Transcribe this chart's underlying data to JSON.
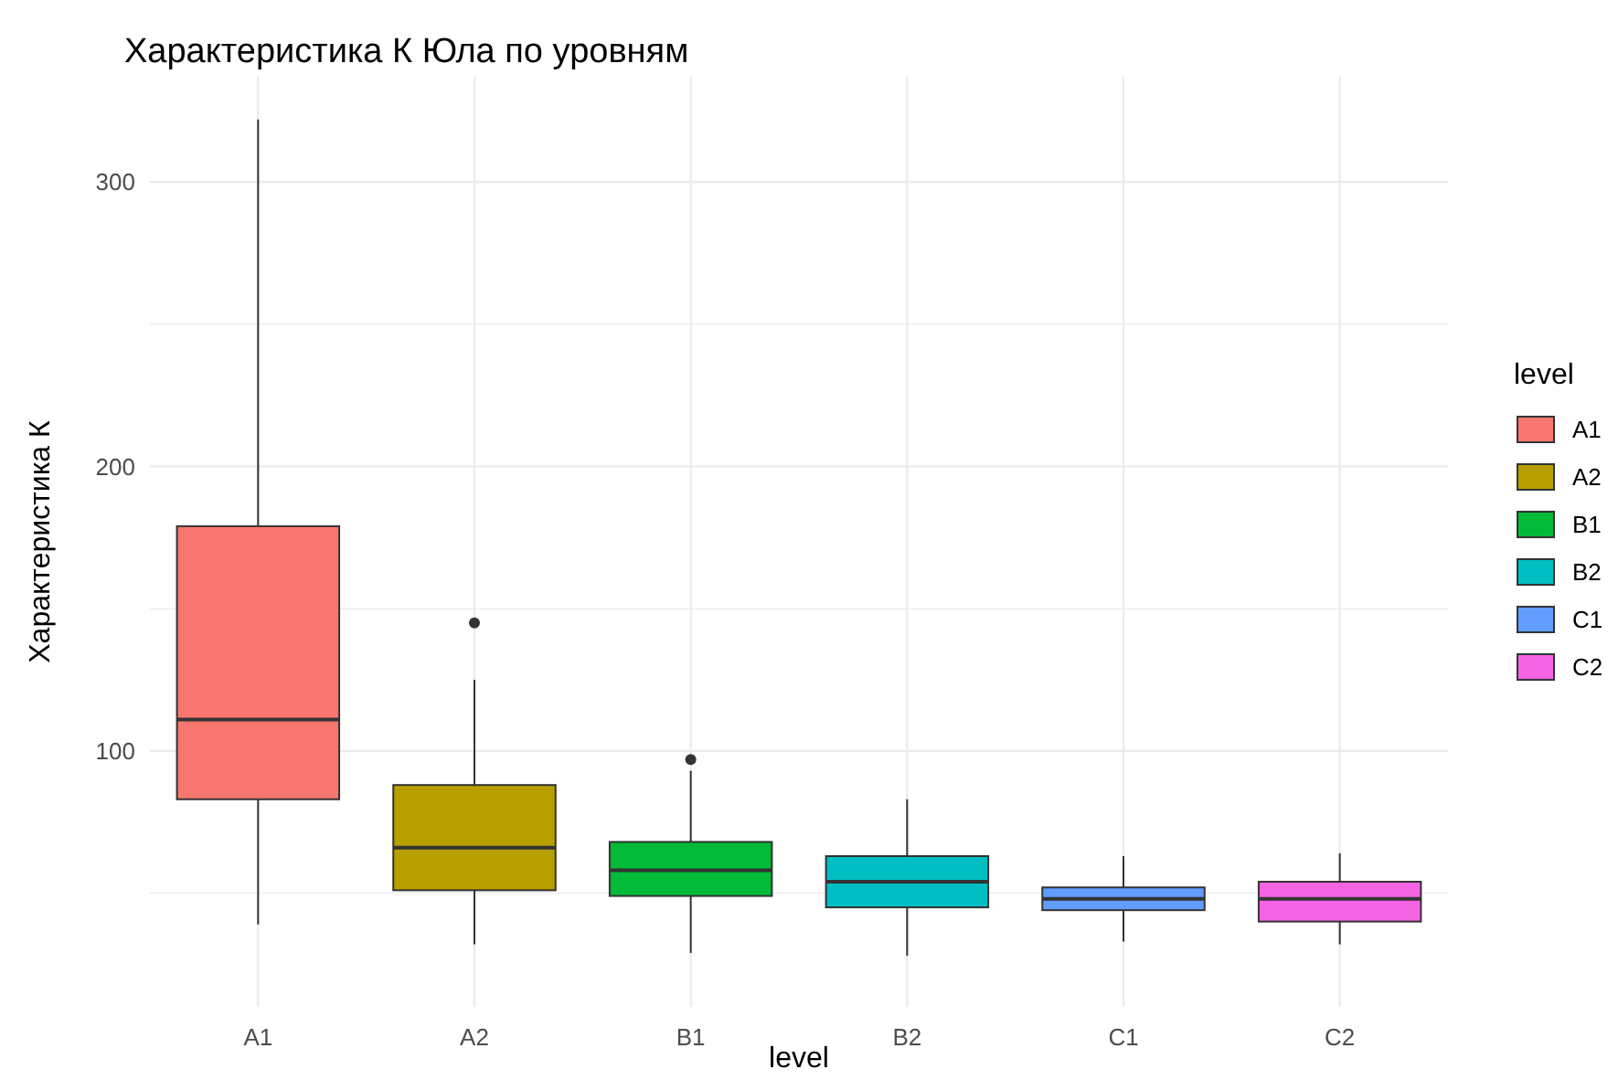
{
  "chart_data": {
    "type": "box",
    "title": "Характеристика К Юла по уровням",
    "xlabel": "level",
    "ylabel": "Характеристика К",
    "legend_title": "level",
    "legend": "right",
    "grid": true,
    "categories": [
      "A1",
      "A2",
      "B1",
      "B2",
      "C1",
      "C2"
    ],
    "ylim": [
      10,
      337
    ],
    "yticks": [
      {
        "value": 50,
        "label": null
      },
      100,
      {
        "value": 150,
        "label": null
      },
      200,
      {
        "value": 250,
        "label": null
      },
      300
    ],
    "series": [
      {
        "name": "A1",
        "color": "#f8766d",
        "boxes": [
          {
            "low": 39,
            "q1": 83,
            "median": 111,
            "q3": 179,
            "high": 322
          },
          null,
          null,
          null,
          null,
          null
        ]
      },
      {
        "name": "A2",
        "color": "#b79f00",
        "boxes": [
          null,
          {
            "low": 32,
            "q1": 51,
            "median": 66,
            "q3": 88,
            "high": 125,
            "outliers": [
              145
            ]
          },
          null,
          null,
          null,
          null
        ]
      },
      {
        "name": "B1",
        "color": "#00ba38",
        "boxes": [
          null,
          null,
          {
            "low": 29,
            "q1": 49,
            "median": 58,
            "q3": 68,
            "high": 93,
            "outliers": [
              97
            ]
          },
          null,
          null,
          null
        ]
      },
      {
        "name": "B2",
        "color": "#00bfc4",
        "boxes": [
          null,
          null,
          null,
          {
            "low": 28,
            "q1": 45,
            "median": 54,
            "q3": 63,
            "high": 83
          },
          null,
          null
        ]
      },
      {
        "name": "C1",
        "color": "#619cff",
        "boxes": [
          null,
          null,
          null,
          null,
          {
            "low": 33,
            "q1": 44,
            "median": 48,
            "q3": 52,
            "high": 63
          },
          null
        ]
      },
      {
        "name": "C2",
        "color": "#f564e3",
        "boxes": [
          null,
          null,
          null,
          null,
          null,
          {
            "low": 32,
            "q1": 40,
            "median": 48,
            "q3": 54,
            "high": 64
          }
        ]
      }
    ]
  }
}
